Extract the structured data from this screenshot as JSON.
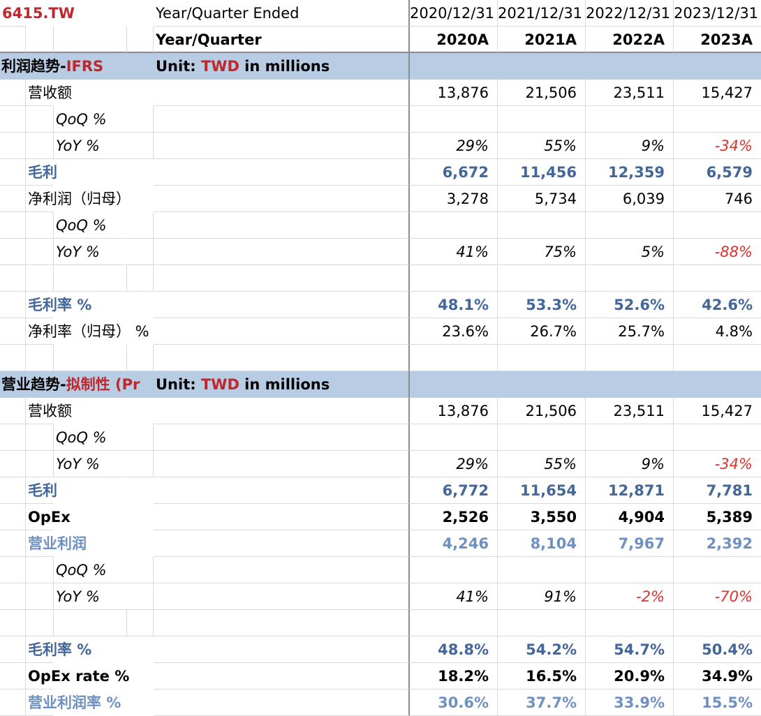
{
  "sheet": {
    "ticker": "6415.TW",
    "header_label_period": "Year/Quarter Ended",
    "header_label_year": "Year/Quarter",
    "dates": [
      "2020/12/31",
      "2021/12/31",
      "2022/12/31",
      "2023/12/31"
    ],
    "years": [
      "2020A",
      "2021A",
      "2022A",
      "2023A"
    ],
    "section1": {
      "title_prefix": "利润趋势-",
      "title_suffix": "IFRS",
      "unit_prefix": "Unit: ",
      "unit_currency": "TWD",
      "unit_suffix": " in millions"
    },
    "section1_rows": {
      "revenue": {
        "label": "营收额",
        "values": [
          "13,876",
          "21,506",
          "23,511",
          "15,427"
        ]
      },
      "rev_qoq": {
        "label": "QoQ %",
        "values": [
          "",
          "",
          "",
          ""
        ]
      },
      "rev_yoy": {
        "label": "YoY %",
        "values": [
          "29%",
          "55%",
          "9%",
          "-34%"
        ]
      },
      "gross": {
        "label": "毛利",
        "values": [
          "6,672",
          "11,456",
          "12,359",
          "6,579"
        ]
      },
      "net": {
        "label": "净利润（归母）",
        "values": [
          "3,278",
          "5,734",
          "6,039",
          "746"
        ]
      },
      "net_qoq": {
        "label": "QoQ %",
        "values": [
          "",
          "",
          "",
          ""
        ]
      },
      "net_yoy": {
        "label": "YoY %",
        "values": [
          "41%",
          "75%",
          "5%",
          "-88%"
        ]
      },
      "gm": {
        "label": "毛利率 %",
        "values": [
          "48.1%",
          "53.3%",
          "52.6%",
          "42.6%"
        ]
      },
      "nm": {
        "label": "净利率（归母） %",
        "values": [
          "23.6%",
          "26.7%",
          "25.7%",
          "4.8%"
        ]
      }
    },
    "section2": {
      "title_prefix": "营业趋势-",
      "title_suffix": "拟制性 (Pr",
      "unit_prefix": "Unit: ",
      "unit_currency": "TWD",
      "unit_suffix": " in millions"
    },
    "section2_rows": {
      "revenue": {
        "label": "营收额",
        "values": [
          "13,876",
          "21,506",
          "23,511",
          "15,427"
        ]
      },
      "rev_qoq": {
        "label": "QoQ %",
        "values": [
          "",
          "",
          "",
          ""
        ]
      },
      "rev_yoy": {
        "label": "YoY %",
        "values": [
          "29%",
          "55%",
          "9%",
          "-34%"
        ]
      },
      "gross": {
        "label": "毛利",
        "values": [
          "6,772",
          "11,654",
          "12,871",
          "7,781"
        ]
      },
      "opex": {
        "label": "OpEx",
        "values": [
          "2,526",
          "3,550",
          "4,904",
          "5,389"
        ]
      },
      "op": {
        "label": "营业利润",
        "values": [
          "4,246",
          "8,104",
          "7,967",
          "2,392"
        ]
      },
      "op_qoq": {
        "label": "QoQ %",
        "values": [
          "",
          "",
          "",
          ""
        ]
      },
      "op_yoy": {
        "label": "YoY %",
        "values": [
          "41%",
          "91%",
          "-2%",
          "-70%"
        ]
      },
      "gm": {
        "label": "毛利率 %",
        "values": [
          "48.8%",
          "54.2%",
          "54.7%",
          "50.4%"
        ]
      },
      "opex_rate": {
        "label": "OpEx rate %",
        "values": [
          "18.2%",
          "16.5%",
          "20.9%",
          "34.9%"
        ]
      },
      "opm": {
        "label": "营业利润率 %",
        "values": [
          "30.6%",
          "37.7%",
          "33.9%",
          "15.5%"
        ]
      }
    }
  },
  "colors": {
    "band": "#b8cce4",
    "label_blue": "#44679a",
    "light_blue": "#6f91c2",
    "negative_red": "#e2302d",
    "accent_red": "#c0262c"
  }
}
